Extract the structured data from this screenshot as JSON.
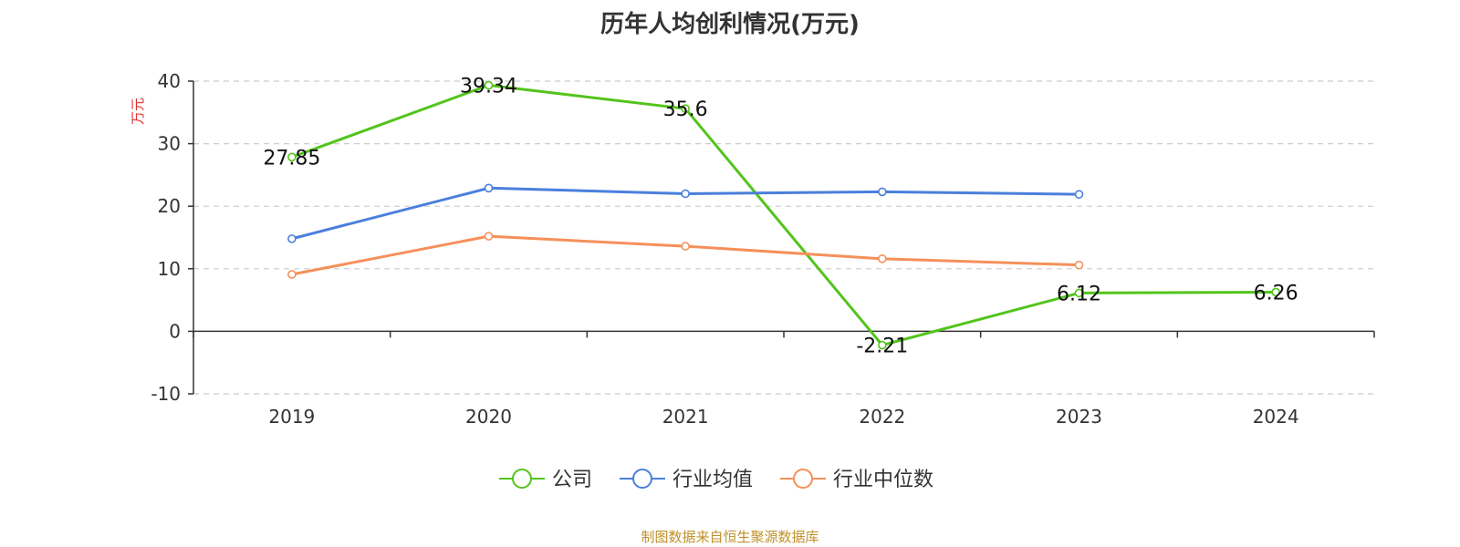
{
  "chart_data": {
    "type": "line",
    "title": "历年人均创利情况(万元)",
    "ylabel": "万元",
    "xlabel": "",
    "categories": [
      "2019",
      "2020",
      "2021",
      "2022",
      "2023",
      "2024"
    ],
    "ylim": [
      -10,
      40
    ],
    "yticks": [
      -10,
      0,
      10,
      20,
      30,
      40
    ],
    "grid": true,
    "legend_position": "bottom-center",
    "series": [
      {
        "name": "公司",
        "color": "#52c41a",
        "values": [
          27.85,
          39.34,
          35.6,
          -2.21,
          6.12,
          6.26
        ],
        "labels": [
          "27.85",
          "39.34",
          "35.6",
          "-2.21",
          "6.12",
          "6.26"
        ]
      },
      {
        "name": "行业均值",
        "color": "#4a7fdc",
        "values": [
          14.8,
          22.9,
          22.0,
          22.3,
          21.9,
          null
        ]
      },
      {
        "name": "行业中位数",
        "color": "#f5905a",
        "values": [
          9.1,
          15.2,
          13.6,
          11.6,
          10.6,
          null
        ]
      }
    ]
  },
  "source_note": "制图数据来自恒生聚源数据库"
}
